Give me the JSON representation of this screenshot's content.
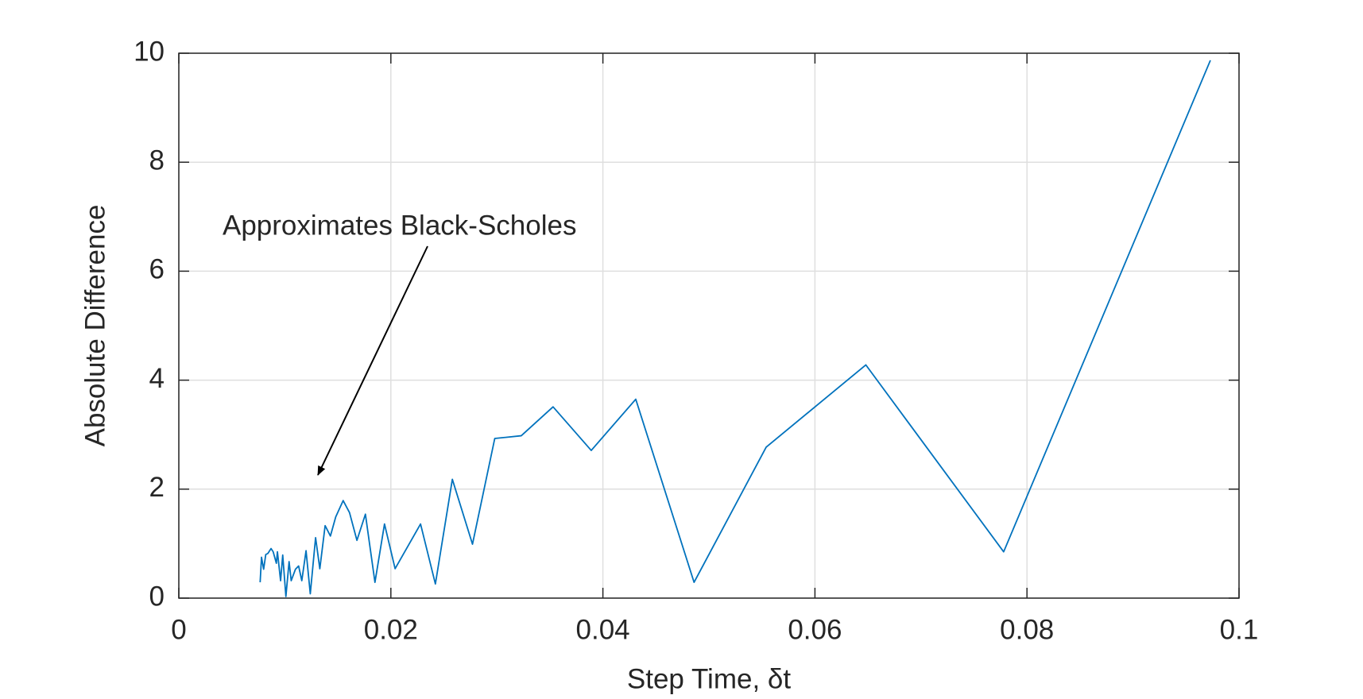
{
  "chart_data": {
    "type": "line",
    "xlabel": "Step Time, δt",
    "ylabel": "Absolute Difference",
    "annotation": "Approximates Black-Scholes",
    "color": "#0072bd",
    "grid": true,
    "xlim": [
      0,
      0.1
    ],
    "ylim": [
      0,
      10
    ],
    "xticks": [
      0,
      0.02,
      0.04,
      0.06,
      0.08,
      0.1
    ],
    "yticks": [
      0,
      2,
      4,
      6,
      8,
      10
    ],
    "x": [
      0.00767,
      0.0078,
      0.008,
      0.0082,
      0.0084,
      0.0087,
      0.0089,
      0.0092,
      0.0093,
      0.0096,
      0.0098,
      0.0101,
      0.0104,
      0.0106,
      0.011,
      0.0113,
      0.0116,
      0.012,
      0.0124,
      0.0129,
      0.0133,
      0.0138,
      0.0143,
      0.0148,
      0.0155,
      0.0161,
      0.0168,
      0.0176,
      0.0185,
      0.0194,
      0.0204,
      0.0216,
      0.0228,
      0.0242,
      0.0258,
      0.0277,
      0.0298,
      0.0323,
      0.0353,
      0.0389,
      0.0431,
      0.0486,
      0.0554,
      0.0648,
      0.0778,
      0.0973
    ],
    "values": [
      0.29,
      0.75,
      0.53,
      0.8,
      0.82,
      0.91,
      0.85,
      0.64,
      0.85,
      0.32,
      0.79,
      0.03,
      0.67,
      0.32,
      0.53,
      0.59,
      0.32,
      0.87,
      0.08,
      1.11,
      0.54,
      1.33,
      1.14,
      1.49,
      1.79,
      1.57,
      1.06,
      1.54,
      0.29,
      1.36,
      0.54,
      0.95,
      1.36,
      0.26,
      2.18,
      0.99,
      2.93,
      2.98,
      3.51,
      2.71,
      3.65,
      0.29,
      2.77,
      4.28,
      0.85,
      9.87
    ]
  }
}
